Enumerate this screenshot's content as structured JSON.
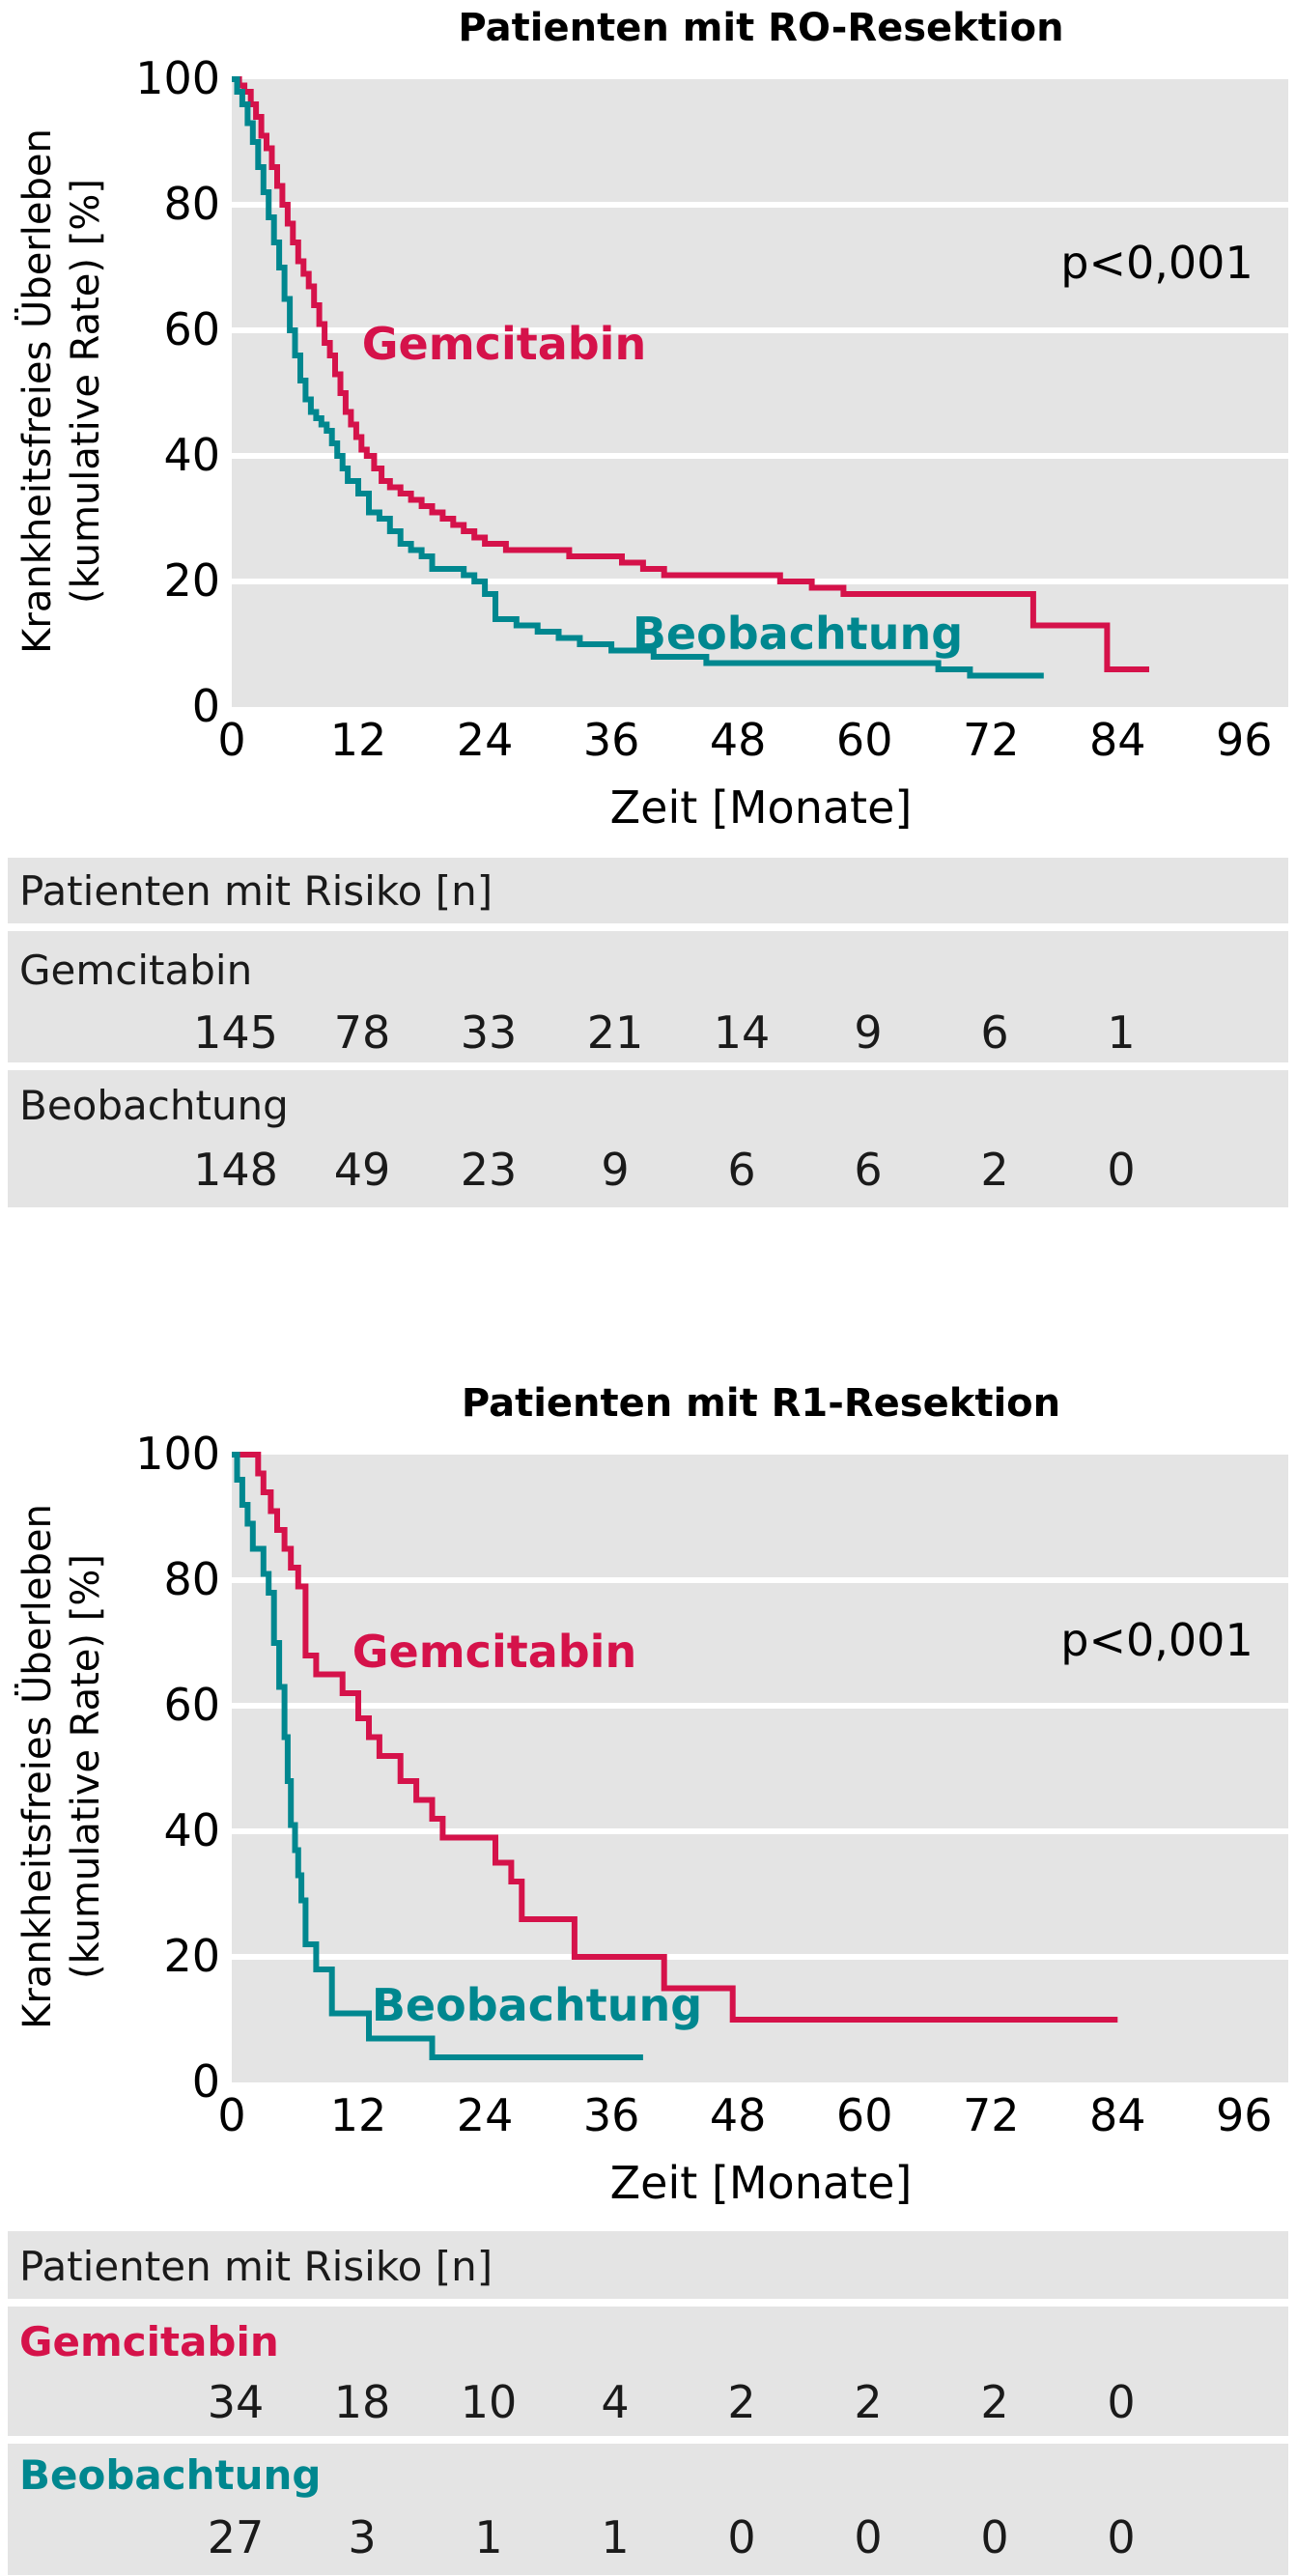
{
  "charts": [
    {
      "id": "r0",
      "title": "Patienten mit RO-Resektion",
      "ylabel_line1": "Krankheitsfreies Überleben",
      "ylabel_line2": "(kumulative Rate) [%]",
      "xlabel": "Zeit [Monate]",
      "pvalue": "p<0,001",
      "series_labels": {
        "gemcitabin": "Gemcitabin",
        "beobachtung": "Beobachtung"
      },
      "risk": {
        "header": "Patienten mit Risiko [n]",
        "groups": [
          {
            "label": "Gemcitabin",
            "values": [
              "145",
              "78",
              "33",
              "21",
              "14",
              "9",
              "6",
              "1"
            ]
          },
          {
            "label": "Beobachtung",
            "values": [
              "148",
              "49",
              "23",
              "9",
              "6",
              "6",
              "2",
              "0"
            ]
          }
        ]
      }
    },
    {
      "id": "r1",
      "title": "Patienten mit R1-Resektion",
      "ylabel_line1": "Krankheitsfreies Überleben",
      "ylabel_line2": "(kumulative Rate) [%]",
      "xlabel": "Zeit [Monate]",
      "pvalue": "p<0,001",
      "series_labels": {
        "gemcitabin": "Gemcitabin",
        "beobachtung": "Beobachtung"
      },
      "risk": {
        "header": "Patienten mit Risiko [n]",
        "groups": [
          {
            "label": "Gemcitabin",
            "values": [
              "34",
              "18",
              "10",
              "4",
              "2",
              "2",
              "2",
              "0"
            ]
          },
          {
            "label": "Beobachtung",
            "values": [
              "27",
              "3",
              "1",
              "1",
              "0",
              "0",
              "0",
              "0"
            ]
          }
        ]
      }
    }
  ],
  "colors": {
    "gemcitabin": "#d5124a",
    "beobachtung": "#00878f",
    "plot_bg": "#e4e4e4",
    "grid": "#ffffff"
  },
  "chart_data": [
    {
      "type": "line",
      "step": true,
      "title": "Patienten mit RO-Resektion",
      "xlabel": "Zeit [Monate]",
      "ylabel": "Krankheitsfreies Überleben (kumulative Rate) [%]",
      "xlim": [
        0,
        100
      ],
      "ylim": [
        0,
        100
      ],
      "xticks": [
        0,
        12,
        24,
        36,
        48,
        60,
        72,
        84,
        96
      ],
      "yticks": [
        0,
        20,
        40,
        60,
        80,
        100
      ],
      "grid": true,
      "annotation": "p<0,001",
      "series": [
        {
          "name": "Gemcitabin",
          "x": [
            0,
            0.7,
            1.2,
            1.8,
            2.3,
            2.8,
            3.3,
            3.8,
            4.3,
            4.8,
            5.3,
            5.8,
            6.3,
            6.8,
            7.3,
            7.8,
            8.3,
            8.8,
            9.3,
            9.8,
            10.3,
            10.8,
            11.3,
            11.8,
            12.3,
            12.8,
            13.5,
            14.2,
            15,
            16,
            17,
            18,
            19,
            20,
            21,
            22,
            23,
            24,
            25,
            26,
            28,
            30,
            32,
            34,
            37,
            39,
            41,
            43,
            47,
            52,
            55,
            58,
            61,
            65,
            71,
            76,
            83,
            85,
            87
          ],
          "y": [
            100,
            99,
            98,
            96,
            94,
            91,
            89,
            86,
            83,
            80,
            77,
            74,
            71,
            69,
            67,
            64,
            61,
            58,
            56,
            53,
            50,
            47,
            45,
            43,
            41,
            40,
            38,
            36,
            35,
            34,
            33,
            32,
            31,
            30,
            29,
            28,
            27,
            26,
            26,
            25,
            25,
            25,
            24,
            24,
            23,
            22,
            21,
            21,
            21,
            20,
            19,
            18,
            18,
            18,
            18,
            13,
            6,
            6,
            6
          ]
        },
        {
          "name": "Beobachtung",
          "x": [
            0,
            0.5,
            1,
            1.5,
            2,
            2.5,
            3,
            3.5,
            4,
            4.5,
            5,
            5.5,
            6,
            6.5,
            7,
            7.5,
            8,
            8.5,
            9,
            9.5,
            10,
            10.5,
            11,
            12,
            13,
            14,
            15,
            16,
            17,
            18,
            19,
            21,
            22,
            23,
            24,
            25,
            27,
            29,
            31,
            33,
            36,
            40,
            45,
            52,
            60,
            67,
            70,
            77
          ],
          "y": [
            100,
            98,
            96,
            93,
            90,
            86,
            82,
            78,
            74,
            70,
            65,
            60,
            56,
            52,
            49,
            47,
            46,
            45,
            44,
            42,
            40,
            38,
            36,
            34,
            31,
            30,
            28,
            26,
            25,
            24,
            22,
            22,
            21,
            20,
            18,
            14,
            13,
            12,
            11,
            10,
            9,
            8,
            7,
            7,
            7,
            6,
            5,
            5
          ]
        }
      ]
    },
    {
      "type": "line",
      "step": true,
      "title": "Patienten mit R1-Resektion",
      "xlabel": "Zeit [Monate]",
      "ylabel": "Krankheitsfreies Überleben (kumulative Rate) [%]",
      "xlim": [
        0,
        100
      ],
      "ylim": [
        0,
        100
      ],
      "xticks": [
        0,
        12,
        24,
        36,
        48,
        60,
        72,
        84,
        96
      ],
      "yticks": [
        0,
        20,
        40,
        60,
        80,
        100
      ],
      "grid": true,
      "annotation": "p<0,001",
      "series": [
        {
          "name": "Gemcitabin",
          "x": [
            0,
            2.5,
            3,
            3.7,
            4.3,
            5,
            5.6,
            6.3,
            7,
            8,
            10.5,
            12,
            13,
            14,
            16,
            17.5,
            19,
            20,
            25,
            26.5,
            27.5,
            32.5,
            36,
            41,
            47.5,
            84
          ],
          "y": [
            100,
            97,
            94,
            91,
            88,
            85,
            82,
            79,
            68,
            65,
            62,
            58,
            55,
            52,
            48,
            45,
            42,
            39,
            35,
            32,
            26,
            20,
            20,
            15,
            10,
            10
          ]
        },
        {
          "name": "Beobachtung",
          "x": [
            0,
            0.5,
            1,
            1.5,
            2,
            3,
            3.5,
            4,
            4.5,
            5,
            5.3,
            5.6,
            6,
            6.3,
            6.6,
            7,
            8,
            9.5,
            13,
            19,
            39
          ],
          "y": [
            100,
            96,
            92,
            89,
            85,
            81,
            78,
            70,
            63,
            55,
            48,
            41,
            37,
            33,
            29,
            22,
            18,
            11,
            7,
            4,
            4
          ]
        }
      ]
    }
  ]
}
